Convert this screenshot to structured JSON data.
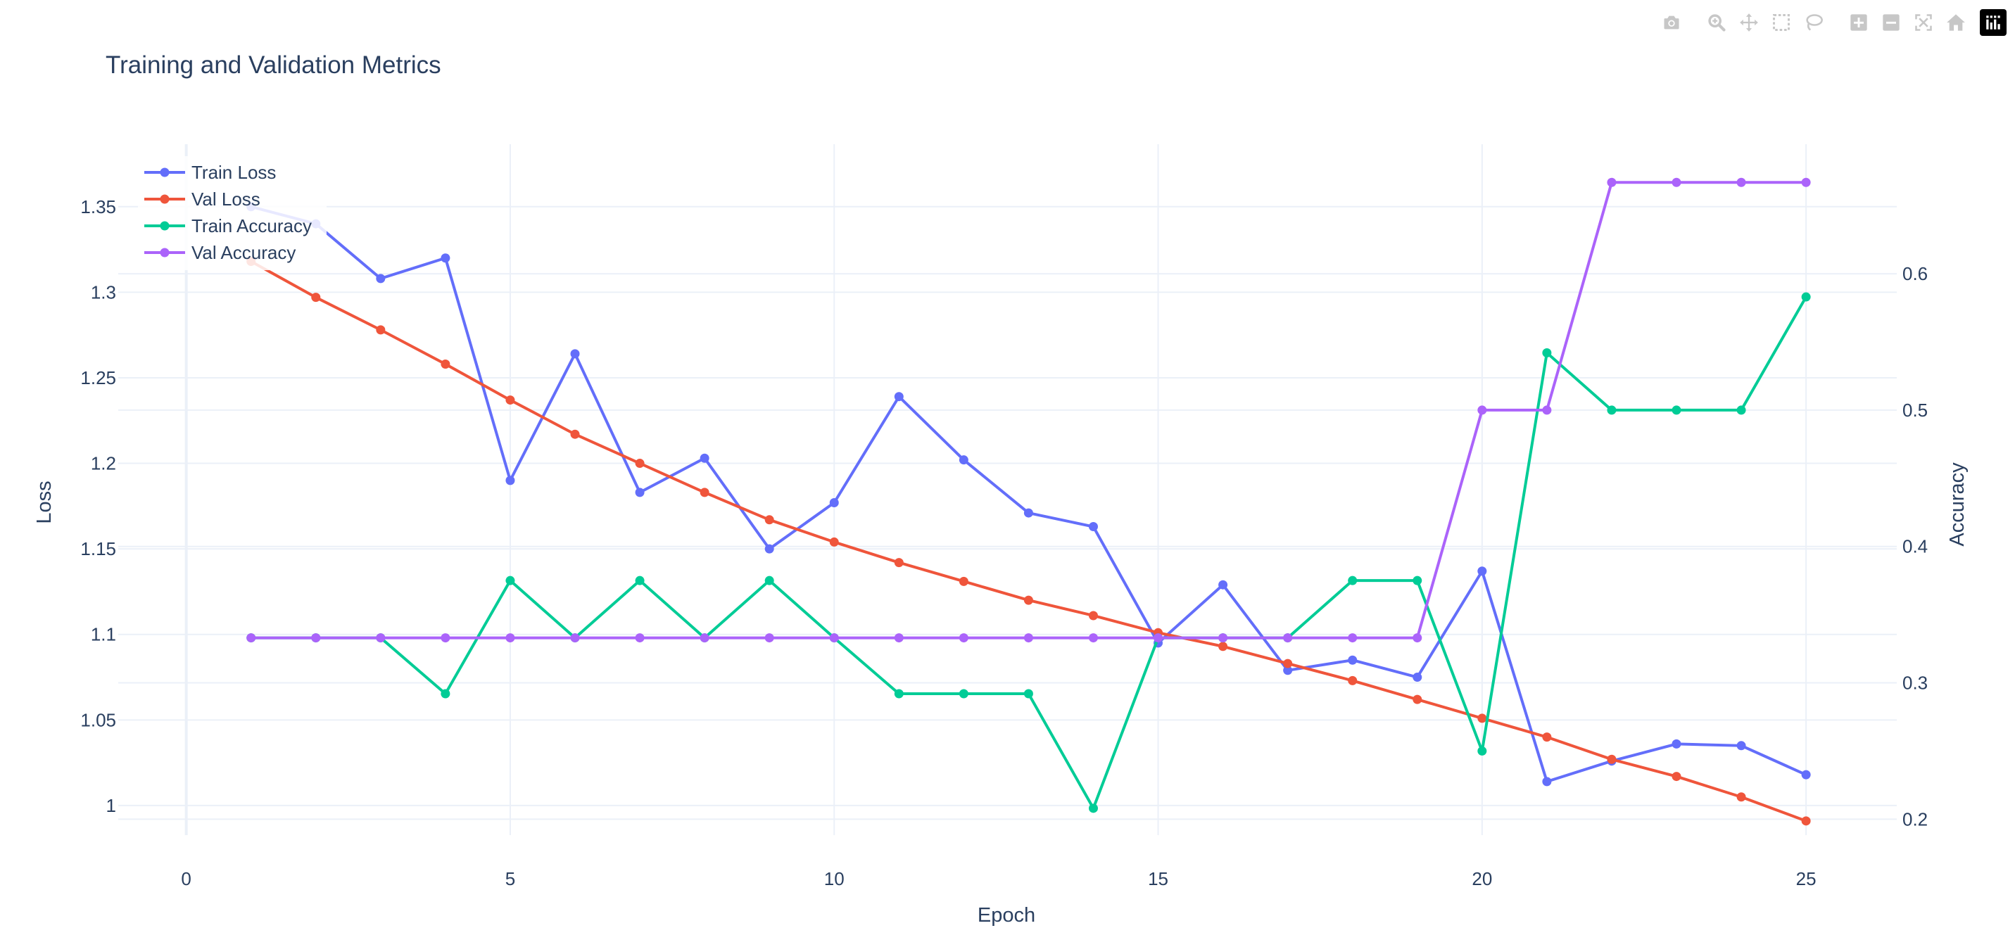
{
  "modebar": {
    "buttons": [
      {
        "name": "download-png-button",
        "icon": "camera-icon"
      },
      {
        "name": "zoom-button",
        "icon": "zoom-icon"
      },
      {
        "name": "pan-button",
        "icon": "pan-icon"
      },
      {
        "name": "box-select-button",
        "icon": "box-select-icon"
      },
      {
        "name": "lasso-select-button",
        "icon": "lasso-icon"
      },
      {
        "name": "zoom-in-button",
        "icon": "plus-icon"
      },
      {
        "name": "zoom-out-button",
        "icon": "minus-icon"
      },
      {
        "name": "autoscale-button",
        "icon": "autoscale-icon"
      },
      {
        "name": "reset-axes-button",
        "icon": "home-icon"
      }
    ],
    "logo_icon": "plotly-logo-icon",
    "icon_color": "#c7c7c7"
  },
  "chart_data": {
    "type": "line",
    "title": "Training and Validation Metrics",
    "xlabel": "Epoch",
    "ylabel": "Loss",
    "y2label": "Accuracy",
    "xlim": [
      -1.05,
      26.4
    ],
    "ylim": [
      0.9827,
      1.3865
    ],
    "y2lim": [
      0.1883,
      0.695
    ],
    "xticks": [
      0,
      5,
      10,
      15,
      20,
      25
    ],
    "yticks": [
      1,
      1.05,
      1.1,
      1.15,
      1.2,
      1.25,
      1.3,
      1.35
    ],
    "ytick_labels": [
      "1",
      "1.05",
      "1.1",
      "1.15",
      "1.2",
      "1.25",
      "1.3",
      "1.35"
    ],
    "y2ticks": [
      0.2,
      0.3,
      0.4,
      0.5,
      0.6
    ],
    "y2tick_labels": [
      "0.2",
      "0.3",
      "0.4",
      "0.5",
      "0.6"
    ],
    "grid": true,
    "legend_position": "top-left",
    "x": [
      1,
      2,
      3,
      4,
      5,
      6,
      7,
      8,
      9,
      10,
      11,
      12,
      13,
      14,
      15,
      16,
      17,
      18,
      19,
      20,
      21,
      22,
      23,
      24,
      25
    ],
    "series": [
      {
        "name": "Train Loss",
        "axis": "y",
        "color": "#636efa",
        "values": [
          1.35,
          1.34,
          1.308,
          1.32,
          1.19,
          1.264,
          1.183,
          1.203,
          1.15,
          1.177,
          1.239,
          1.202,
          1.171,
          1.163,
          1.095,
          1.129,
          1.079,
          1.085,
          1.075,
          1.137,
          1.014,
          1.026,
          1.036,
          1.035,
          1.018
        ]
      },
      {
        "name": "Val Loss",
        "axis": "y",
        "color": "#ef553b",
        "values": [
          1.318,
          1.297,
          1.278,
          1.258,
          1.237,
          1.217,
          1.2,
          1.183,
          1.167,
          1.154,
          1.142,
          1.131,
          1.12,
          1.111,
          1.101,
          1.093,
          1.083,
          1.073,
          1.062,
          1.051,
          1.04,
          1.027,
          1.017,
          1.005,
          0.991
        ]
      },
      {
        "name": "Train Accuracy",
        "axis": "y2",
        "color": "#00cc96",
        "values": [
          0.333,
          0.333,
          0.333,
          0.292,
          0.375,
          0.333,
          0.375,
          0.333,
          0.375,
          0.333,
          0.292,
          0.292,
          0.292,
          0.208,
          0.333,
          0.333,
          0.333,
          0.375,
          0.375,
          0.25,
          0.542,
          0.5,
          0.5,
          0.5,
          0.583
        ]
      },
      {
        "name": "Val Accuracy",
        "axis": "y2",
        "color": "#ab63fa",
        "values": [
          0.333,
          0.333,
          0.333,
          0.333,
          0.333,
          0.333,
          0.333,
          0.333,
          0.333,
          0.333,
          0.333,
          0.333,
          0.333,
          0.333,
          0.333,
          0.333,
          0.333,
          0.333,
          0.333,
          0.5,
          0.5,
          0.667,
          0.667,
          0.667,
          0.667
        ]
      }
    ]
  }
}
